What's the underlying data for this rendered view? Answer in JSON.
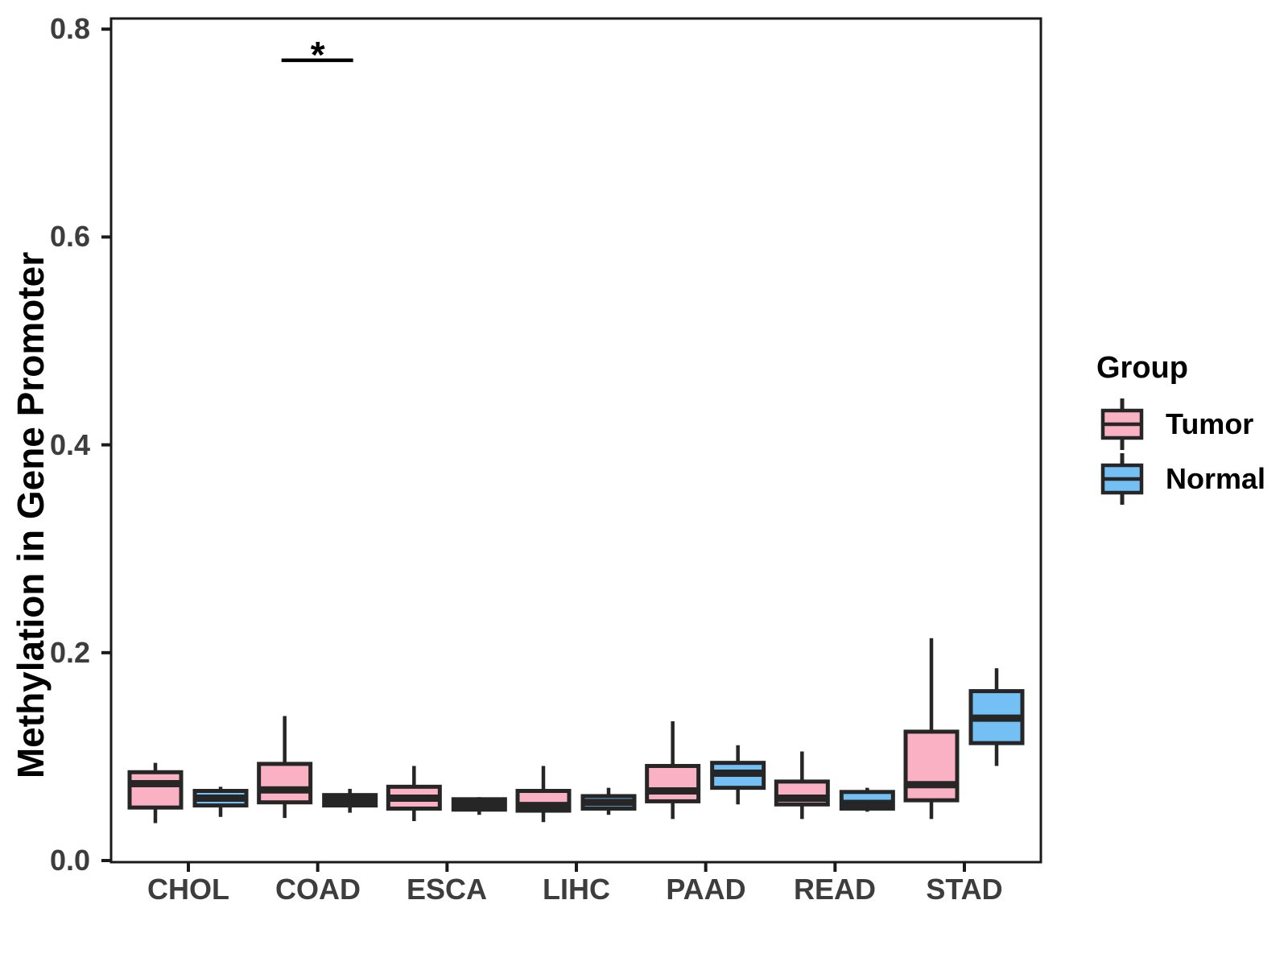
{
  "legend": {
    "title": "Group",
    "items": [
      {
        "label": "Tumor",
        "color": "#FAB1C3"
      },
      {
        "label": "Normal",
        "color": "#74BFF4"
      }
    ]
  },
  "chart_data": {
    "type": "boxplot",
    "title": "",
    "xlabel": "",
    "ylabel": "Methylation in Gene Promoter",
    "categories": [
      "CHOL",
      "COAD",
      "ESCA",
      "LIHC",
      "PAAD",
      "READ",
      "STAD"
    ],
    "ytick_labels": [
      "0.0",
      "0.2",
      "0.4",
      "0.6",
      "0.8"
    ],
    "yticks": [
      0.0,
      0.2,
      0.4,
      0.6,
      0.8
    ],
    "ylim": [
      0.0,
      0.81
    ],
    "grid": false,
    "legend_position": "right",
    "colors": {
      "tumor": "#FAB1C3",
      "normal": "#74BFF4",
      "box_border": "#262626",
      "axis_line": "#1a1a1a",
      "axis_text": "#3d3d3d"
    },
    "series": [
      {
        "name": "Tumor",
        "color": "#FAB1C3",
        "boxes": [
          {
            "category": "CHOL",
            "whislo": 0.036,
            "q1": 0.051,
            "med": 0.074,
            "q3": 0.085,
            "whishi": 0.094
          },
          {
            "category": "COAD",
            "whislo": 0.041,
            "q1": 0.056,
            "med": 0.068,
            "q3": 0.093,
            "whishi": 0.139
          },
          {
            "category": "ESCA",
            "whislo": 0.038,
            "q1": 0.05,
            "med": 0.06,
            "q3": 0.071,
            "whishi": 0.091
          },
          {
            "category": "LIHC",
            "whislo": 0.037,
            "q1": 0.048,
            "med": 0.053,
            "q3": 0.067,
            "whishi": 0.091
          },
          {
            "category": "PAAD",
            "whislo": 0.04,
            "q1": 0.057,
            "med": 0.067,
            "q3": 0.091,
            "whishi": 0.134
          },
          {
            "category": "READ",
            "whislo": 0.04,
            "q1": 0.054,
            "med": 0.06,
            "q3": 0.076,
            "whishi": 0.105
          },
          {
            "category": "STAD",
            "whislo": 0.04,
            "q1": 0.058,
            "med": 0.073,
            "q3": 0.124,
            "whishi": 0.214
          }
        ]
      },
      {
        "name": "Normal",
        "color": "#74BFF4",
        "boxes": [
          {
            "category": "CHOL",
            "whislo": 0.042,
            "q1": 0.053,
            "med": 0.06,
            "q3": 0.067,
            "whishi": 0.071
          },
          {
            "category": "COAD",
            "whislo": 0.046,
            "q1": 0.053,
            "med": 0.058,
            "q3": 0.063,
            "whishi": 0.069
          },
          {
            "category": "ESCA",
            "whislo": 0.044,
            "q1": 0.049,
            "med": 0.054,
            "q3": 0.059,
            "whishi": 0.061
          },
          {
            "category": "LIHC",
            "whislo": 0.044,
            "q1": 0.05,
            "med": 0.056,
            "q3": 0.062,
            "whishi": 0.07
          },
          {
            "category": "PAAD",
            "whislo": 0.054,
            "q1": 0.07,
            "med": 0.084,
            "q3": 0.094,
            "whishi": 0.111
          },
          {
            "category": "READ",
            "whislo": 0.047,
            "q1": 0.05,
            "med": 0.055,
            "q3": 0.066,
            "whishi": 0.07
          },
          {
            "category": "STAD",
            "whislo": 0.091,
            "q1": 0.113,
            "med": 0.137,
            "q3": 0.163,
            "whishi": 0.185
          }
        ]
      }
    ],
    "annotation": {
      "label": "*",
      "category": "COAD",
      "y": 0.77
    }
  }
}
